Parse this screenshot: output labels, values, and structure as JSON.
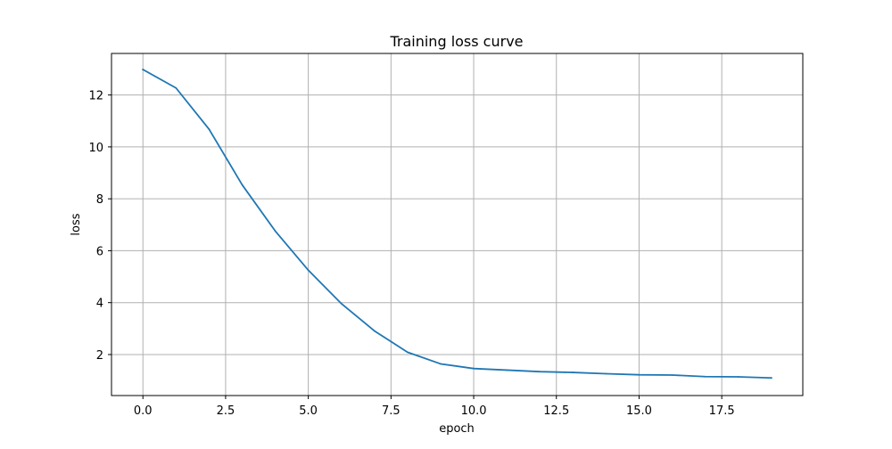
{
  "chart_data": {
    "type": "line",
    "title": "Training loss curve",
    "xlabel": "epoch",
    "ylabel": "loss",
    "xlim": [
      -0.95,
      19.95
    ],
    "ylim": [
      0.42,
      13.6
    ],
    "grid": true,
    "x_ticks": [
      0.0,
      2.5,
      5.0,
      7.5,
      10.0,
      12.5,
      15.0,
      17.5
    ],
    "x_tick_labels": [
      "0.0",
      "2.5",
      "5.0",
      "7.5",
      "10.0",
      "12.5",
      "15.0",
      "17.5"
    ],
    "y_ticks": [
      2,
      4,
      6,
      8,
      10,
      12
    ],
    "y_tick_labels": [
      "2",
      "4",
      "6",
      "8",
      "10",
      "12"
    ],
    "series": [
      {
        "color": "#1f77b4",
        "x": [
          0,
          1,
          2,
          3,
          4,
          5,
          6,
          7,
          8,
          9,
          10,
          11,
          12,
          13,
          14,
          15,
          16,
          17,
          18,
          19
        ],
        "y": [
          12.98,
          12.27,
          10.68,
          8.54,
          6.76,
          5.25,
          3.96,
          2.91,
          2.09,
          1.64,
          1.46,
          1.4,
          1.34,
          1.31,
          1.26,
          1.22,
          1.21,
          1.15,
          1.14,
          1.1
        ]
      }
    ]
  }
}
